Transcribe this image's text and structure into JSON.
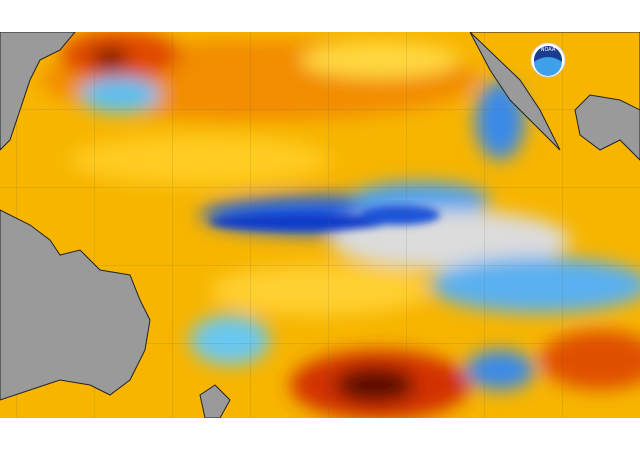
{
  "logo": {
    "label": "NOAA"
  }
}
